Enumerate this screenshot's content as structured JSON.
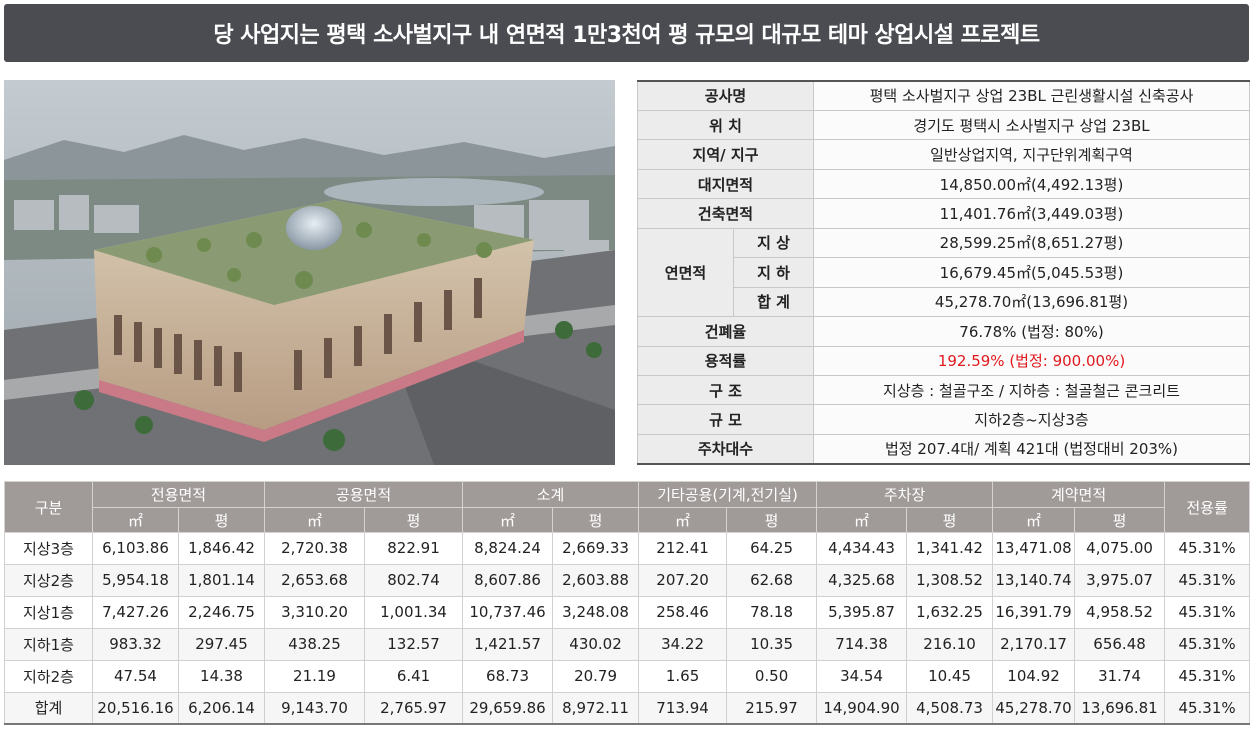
{
  "title": "당 사업지는 평택 소사벌지구 내 연면적 1만3천여 평 규모의 대규모 테마 상업시설 프로젝트",
  "project_info": {
    "rows": [
      {
        "label": "공사명",
        "value": "평택 소사벌지구 상업 23BL 근린생활시설 신축공사"
      },
      {
        "label": "위 치",
        "value": "경기도 평택시 소사벌지구 상업 23BL"
      },
      {
        "label": "지역/ 지구",
        "value": "일반상업지역, 지구단위계획구역"
      },
      {
        "label": "대지면적",
        "value": "14,850.00㎡(4,492.13평)"
      },
      {
        "label": "건축면적",
        "value": "11,401.76㎡(3,449.03평)"
      }
    ],
    "floor_area": {
      "label": "연면적",
      "rows": [
        {
          "label": "지 상",
          "value": "28,599.25㎡(8,651.27평)"
        },
        {
          "label": "지 하",
          "value": "16,679.45㎡(5,045.53평)"
        },
        {
          "label": "합 계",
          "value": "45,278.70㎡(13,696.81평)"
        }
      ]
    },
    "rows2": [
      {
        "label": "건폐율",
        "value": "76.78% (법정: 80%)"
      },
      {
        "label": "용적률",
        "value": "192.59% (법정: 900.00%)"
      },
      {
        "label": "구 조",
        "value": "지상층 : 철골구조 / 지하층 : 철골철근 콘크리트"
      },
      {
        "label": "규 모",
        "value": "지하2층~지상3층"
      },
      {
        "label": "주차대수",
        "value": "법정 207.4대/ 계획 421대 (법정대비 203%)"
      }
    ],
    "highlight_color": "#e0191e"
  },
  "area_table": {
    "header_first": "구분",
    "groups": [
      "전용면적",
      "공용면적",
      "소계",
      "기타공용(기계,전기실)",
      "주차장",
      "계약면적"
    ],
    "header_last": "전용률",
    "units": [
      "㎡",
      "평",
      "㎡",
      "평",
      "㎡",
      "평",
      "㎡",
      "평",
      "㎡",
      "평",
      "㎡",
      "평"
    ],
    "rows": [
      [
        "지상3층",
        "6,103.86",
        "1,846.42",
        "2,720.38",
        "822.91",
        "8,824.24",
        "2,669.33",
        "212.41",
        "64.25",
        "4,434.43",
        "1,341.42",
        "13,471.08",
        "4,075.00",
        "45.31%"
      ],
      [
        "지상2층",
        "5,954.18",
        "1,801.14",
        "2,653.68",
        "802.74",
        "8,607.86",
        "2,603.88",
        "207.20",
        "62.68",
        "4,325.68",
        "1,308.52",
        "13,140.74",
        "3,975.07",
        "45.31%"
      ],
      [
        "지상1층",
        "7,427.26",
        "2,246.75",
        "3,310.20",
        "1,001.34",
        "10,737.46",
        "3,248.08",
        "258.46",
        "78.18",
        "5,395.87",
        "1,632.25",
        "16,391.79",
        "4,958.52",
        "45.31%"
      ],
      [
        "지하1층",
        "983.32",
        "297.45",
        "438.25",
        "132.57",
        "1,421.57",
        "430.02",
        "34.22",
        "10.35",
        "714.38",
        "216.10",
        "2,170.17",
        "656.48",
        "45.31%"
      ],
      [
        "지하2층",
        "47.54",
        "14.38",
        "21.19",
        "6.41",
        "68.73",
        "20.79",
        "1.65",
        "0.50",
        "34.54",
        "10.45",
        "104.92",
        "31.74",
        "45.31%"
      ],
      [
        "합계",
        "20,516.16",
        "6,206.14",
        "9,143.70",
        "2,765.97",
        "29,659.86",
        "8,972.11",
        "713.94",
        "215.97",
        "14,904.90",
        "4,508.73",
        "45,278.70",
        "13,696.81",
        "45.31%"
      ]
    ]
  }
}
